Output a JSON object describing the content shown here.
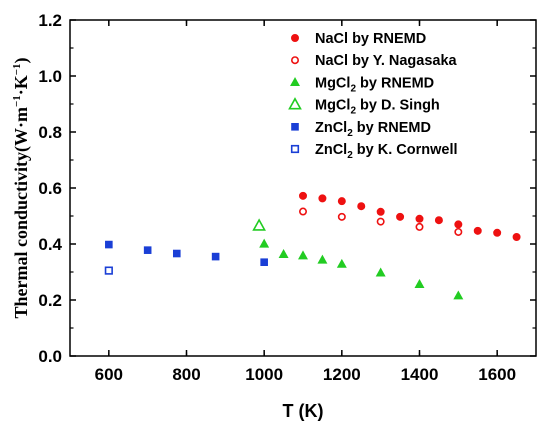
{
  "chart_data": {
    "type": "scatter",
    "xlabel": "T (K)",
    "ylabel_main": "Thermal conductivity",
    "ylabel_unit": "(W·m",
    "ylabel_unit_exp1": "−1",
    "ylabel_unit_mid": "·K",
    "ylabel_unit_exp2": "−1",
    "ylabel_unit_end": ")",
    "xlim": [
      500,
      1700
    ],
    "ylim": [
      0.0,
      1.2
    ],
    "xticks": [
      "600",
      "800",
      "1000",
      "1200",
      "1400",
      "1600"
    ],
    "xtick_values": [
      600,
      800,
      1000,
      1200,
      1400,
      1600
    ],
    "yticks": [
      "0.0",
      "0.2",
      "0.4",
      "0.6",
      "0.8",
      "1.0",
      "1.2"
    ],
    "ytick_values": [
      0.0,
      0.2,
      0.4,
      0.6,
      0.8,
      1.0,
      1.2
    ],
    "legend_position": "top-right",
    "series": [
      {
        "name": "NaCl by RNEMD",
        "label_main": "NaCl by RNEMD",
        "label_sub": "",
        "label_tail": "",
        "marker": "circle",
        "filled": true,
        "color": "#ee1111",
        "x": [
          1100,
          1150,
          1200,
          1250,
          1300,
          1350,
          1400,
          1450,
          1500,
          1550,
          1600,
          1650
        ],
        "y": [
          0.572,
          0.563,
          0.553,
          0.535,
          0.515,
          0.497,
          0.49,
          0.485,
          0.47,
          0.447,
          0.44,
          0.425
        ]
      },
      {
        "name": "NaCl by Y. Nagasaka",
        "label_main": "NaCl by Y. Nagasaka",
        "label_sub": "",
        "label_tail": "",
        "marker": "circle",
        "filled": false,
        "color": "#ee1111",
        "x": [
          1100,
          1200,
          1300,
          1400,
          1500
        ],
        "y": [
          0.516,
          0.497,
          0.48,
          0.461,
          0.443
        ]
      },
      {
        "name": "MgCl2 by RNEMD",
        "label_main": "MgCl",
        "label_sub": "2",
        "label_tail": " by RNEMD",
        "marker": "triangle",
        "filled": true,
        "color": "#22cc22",
        "x": [
          1000,
          1050,
          1100,
          1150,
          1200,
          1300,
          1400,
          1500
        ],
        "y": [
          0.4,
          0.363,
          0.358,
          0.343,
          0.328,
          0.297,
          0.256,
          0.215
        ]
      },
      {
        "name": "MgCl2 by D. Singh",
        "label_main": "MgCl",
        "label_sub": "2",
        "label_tail": " by D. Singh",
        "marker": "triangle",
        "filled": false,
        "color": "#22cc22",
        "x": [
          987
        ],
        "y": [
          0.465
        ]
      },
      {
        "name": "ZnCl2 by RNEMD",
        "label_main": "ZnCl",
        "label_sub": "2",
        "label_tail": " by RNEMD",
        "marker": "square",
        "filled": true,
        "color": "#1a3fd6",
        "x": [
          600,
          700,
          775,
          875,
          1000
        ],
        "y": [
          0.398,
          0.378,
          0.366,
          0.355,
          0.335
        ]
      },
      {
        "name": "ZnCl2 by K. Cornwell",
        "label_main": "ZnCl",
        "label_sub": "2",
        "label_tail": " by K. Cornwell",
        "marker": "square",
        "filled": false,
        "color": "#1a3fd6",
        "x": [
          600
        ],
        "y": [
          0.305
        ]
      }
    ]
  }
}
